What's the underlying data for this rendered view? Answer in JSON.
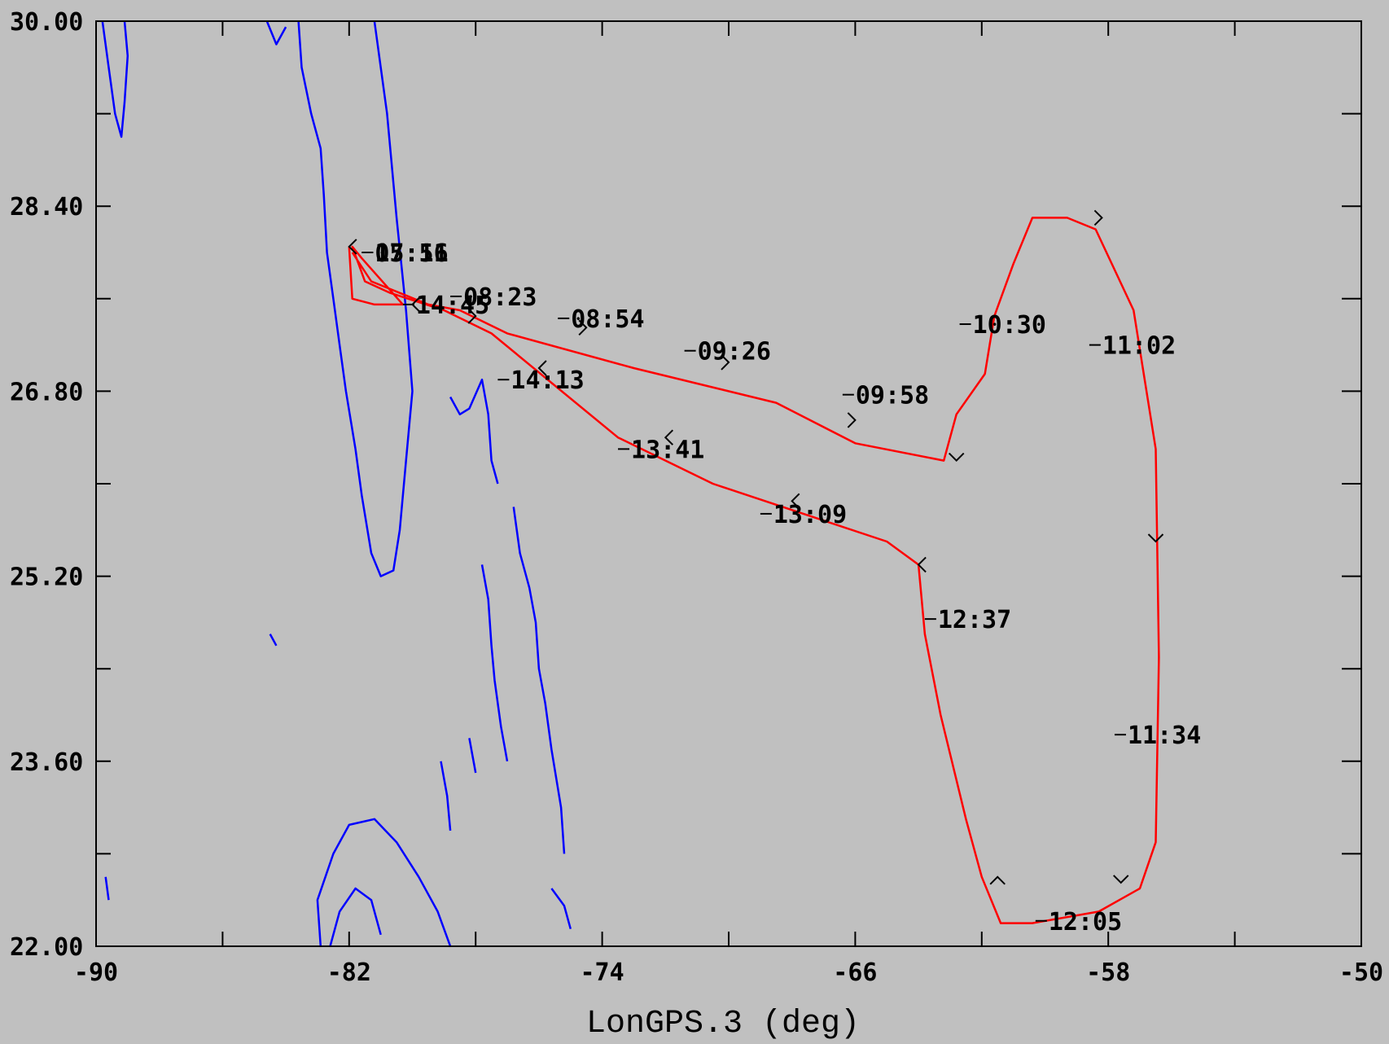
{
  "chart_data": {
    "type": "map-track",
    "xlabel": "LonGPS.3 (deg)",
    "xlim": [
      -90,
      -50
    ],
    "ylim": [
      22.0,
      30.0
    ],
    "x_ticks": [
      "-90",
      "-82",
      "-74",
      "-66",
      "-58",
      "-50"
    ],
    "y_ticks": [
      "22.00",
      "23.60",
      "25.20",
      "26.80",
      "28.40",
      "30.00"
    ],
    "track_color": "#ff0000",
    "coastline_color": "#0000ff",
    "river_color": "#add8e6",
    "track": [
      [
        -81.9,
        28.0
      ],
      [
        -81.3,
        27.75
      ],
      [
        -79.5,
        27.55
      ],
      [
        -78.5,
        27.5
      ],
      [
        -77.0,
        27.3
      ],
      [
        -73.0,
        27.0
      ],
      [
        -68.5,
        26.7
      ],
      [
        -66.0,
        26.35
      ],
      [
        -63.2,
        26.2
      ],
      [
        -62.8,
        26.6
      ],
      [
        -61.9,
        26.95
      ],
      [
        -61.6,
        27.45
      ],
      [
        -61.0,
        27.9
      ],
      [
        -60.4,
        28.3
      ],
      [
        -59.3,
        28.3
      ],
      [
        -58.4,
        28.2
      ],
      [
        -57.2,
        27.5
      ],
      [
        -56.5,
        26.3
      ],
      [
        -56.4,
        24.5
      ],
      [
        -56.5,
        22.9
      ],
      [
        -57.0,
        22.5
      ],
      [
        -58.3,
        22.3
      ],
      [
        -60.4,
        22.2
      ],
      [
        -61.4,
        22.2
      ],
      [
        -62.0,
        22.6
      ],
      [
        -62.5,
        23.1
      ],
      [
        -63.3,
        24.0
      ],
      [
        -63.8,
        24.7
      ],
      [
        -64.0,
        25.3
      ],
      [
        -65.0,
        25.5
      ],
      [
        -70.5,
        26.0
      ],
      [
        -73.5,
        26.4
      ],
      [
        -77.5,
        27.3
      ],
      [
        -79.0,
        27.5
      ],
      [
        -80.7,
        27.65
      ],
      [
        -81.5,
        27.75
      ],
      [
        -81.9,
        28.05
      ],
      [
        -81.6,
        27.95
      ],
      [
        -80.3,
        27.55
      ],
      [
        -81.2,
        27.55
      ],
      [
        -81.9,
        27.6
      ],
      [
        -82.0,
        28.05
      ]
    ],
    "time_labels": [
      {
        "text": "07:51",
        "lon": -81.6,
        "lat": 28.0
      },
      {
        "text": "08:23",
        "lon": -78.8,
        "lat": 27.62
      },
      {
        "text": "08:54",
        "lon": -75.4,
        "lat": 27.43
      },
      {
        "text": "09:26",
        "lon": -71.4,
        "lat": 27.15
      },
      {
        "text": "09:58",
        "lon": -66.4,
        "lat": 26.77
      },
      {
        "text": "10:30",
        "lon": -62.7,
        "lat": 27.38
      },
      {
        "text": "11:02",
        "lon": -58.6,
        "lat": 27.2
      },
      {
        "text": "11:34",
        "lon": -57.8,
        "lat": 23.83
      },
      {
        "text": "12:05",
        "lon": -60.3,
        "lat": 22.22
      },
      {
        "text": "12:37",
        "lon": -63.8,
        "lat": 24.83
      },
      {
        "text": "13:09",
        "lon": -69.0,
        "lat": 25.74
      },
      {
        "text": "13:41",
        "lon": -73.5,
        "lat": 26.3
      },
      {
        "text": "14:13",
        "lon": -77.3,
        "lat": 26.9
      },
      {
        "text": "14:45",
        "lon": -80.3,
        "lat": 27.55
      },
      {
        "text": "15:16",
        "lon": -81.6,
        "lat": 28.0
      }
    ],
    "arrows": [
      {
        "lon": -82.0,
        "lat": 28.05,
        "dir": "left"
      },
      {
        "lon": -78.0,
        "lat": 27.45,
        "dir": "right"
      },
      {
        "lon": -74.5,
        "lat": 27.35,
        "dir": "right"
      },
      {
        "lon": -70.0,
        "lat": 27.05,
        "dir": "right"
      },
      {
        "lon": -66.0,
        "lat": 26.55,
        "dir": "right"
      },
      {
        "lon": -62.8,
        "lat": 26.2,
        "dir": "down"
      },
      {
        "lon": -58.2,
        "lat": 28.3,
        "dir": "right"
      },
      {
        "lon": -56.5,
        "lat": 25.5,
        "dir": "down"
      },
      {
        "lon": -57.6,
        "lat": 22.55,
        "dir": "down"
      },
      {
        "lon": -61.5,
        "lat": 22.6,
        "dir": "up"
      },
      {
        "lon": -64.0,
        "lat": 25.3,
        "dir": "left"
      },
      {
        "lon": -68.0,
        "lat": 25.85,
        "dir": "left"
      },
      {
        "lon": -72.0,
        "lat": 26.4,
        "dir": "left"
      },
      {
        "lon": -76.0,
        "lat": 27.0,
        "dir": "left"
      },
      {
        "lon": -80.0,
        "lat": 27.55,
        "dir": "left"
      }
    ],
    "coastlines": [
      [
        [
          -83.6,
          30.0
        ],
        [
          -83.5,
          29.6
        ],
        [
          -83.2,
          29.2
        ],
        [
          -82.9,
          28.9
        ],
        [
          -82.8,
          28.5
        ],
        [
          -82.7,
          28.0
        ],
        [
          -82.5,
          27.6
        ],
        [
          -82.3,
          27.2
        ],
        [
          -82.1,
          26.8
        ],
        [
          -81.8,
          26.3
        ],
        [
          -81.6,
          25.9
        ],
        [
          -81.3,
          25.4
        ],
        [
          -81.0,
          25.2
        ],
        [
          -80.6,
          25.25
        ],
        [
          -80.4,
          25.6
        ],
        [
          -80.2,
          26.2
        ],
        [
          -80.0,
          26.8
        ],
        [
          -80.2,
          27.5
        ],
        [
          -80.5,
          28.3
        ],
        [
          -80.8,
          29.2
        ],
        [
          -81.2,
          30.0
        ]
      ],
      [
        [
          -89.8,
          30.0
        ],
        [
          -89.6,
          29.6
        ],
        [
          -89.4,
          29.2
        ],
        [
          -89.2,
          29.0
        ],
        [
          -89.1,
          29.3
        ],
        [
          -89.0,
          29.7
        ],
        [
          -89.1,
          30.0
        ]
      ],
      [
        [
          -84.6,
          30.0
        ],
        [
          -84.3,
          29.8
        ],
        [
          -84.0,
          29.95
        ]
      ],
      [
        [
          -78.8,
          26.75
        ],
        [
          -78.5,
          26.6
        ],
        [
          -78.2,
          26.65
        ],
        [
          -77.8,
          26.9
        ],
        [
          -77.6,
          26.6
        ],
        [
          -77.5,
          26.2
        ],
        [
          -77.3,
          26.0
        ]
      ],
      [
        [
          -77.8,
          25.3
        ],
        [
          -77.6,
          25.0
        ],
        [
          -77.5,
          24.6
        ],
        [
          -77.4,
          24.3
        ],
        [
          -77.2,
          23.9
        ],
        [
          -77.0,
          23.6
        ]
      ],
      [
        [
          -76.8,
          25.8
        ],
        [
          -76.6,
          25.4
        ],
        [
          -76.3,
          25.1
        ],
        [
          -76.1,
          24.8
        ],
        [
          -76.0,
          24.4
        ],
        [
          -75.8,
          24.1
        ],
        [
          -75.6,
          23.7
        ],
        [
          -75.3,
          23.2
        ],
        [
          -75.2,
          22.8
        ]
      ],
      [
        [
          -75.6,
          22.5
        ],
        [
          -75.2,
          22.35
        ],
        [
          -75.0,
          22.15
        ]
      ],
      [
        [
          -82.9,
          22.0
        ],
        [
          -83.0,
          22.4
        ],
        [
          -82.5,
          22.8
        ],
        [
          -82.0,
          23.05
        ],
        [
          -81.2,
          23.1
        ],
        [
          -80.5,
          22.9
        ],
        [
          -79.8,
          22.6
        ],
        [
          -79.2,
          22.3
        ],
        [
          -78.8,
          22.0
        ]
      ],
      [
        [
          -82.6,
          22.0
        ],
        [
          -82.3,
          22.3
        ],
        [
          -81.8,
          22.5
        ],
        [
          -81.3,
          22.4
        ],
        [
          -81.0,
          22.1
        ]
      ],
      [
        [
          -89.7,
          22.6
        ],
        [
          -89.6,
          22.4
        ]
      ],
      [
        [
          -84.5,
          24.7
        ],
        [
          -84.3,
          24.6
        ]
      ],
      [
        [
          -79.1,
          23.6
        ],
        [
          -78.9,
          23.3
        ],
        [
          -78.8,
          23.0
        ]
      ],
      [
        [
          -78.2,
          23.8
        ],
        [
          -78.0,
          23.5
        ]
      ]
    ]
  }
}
